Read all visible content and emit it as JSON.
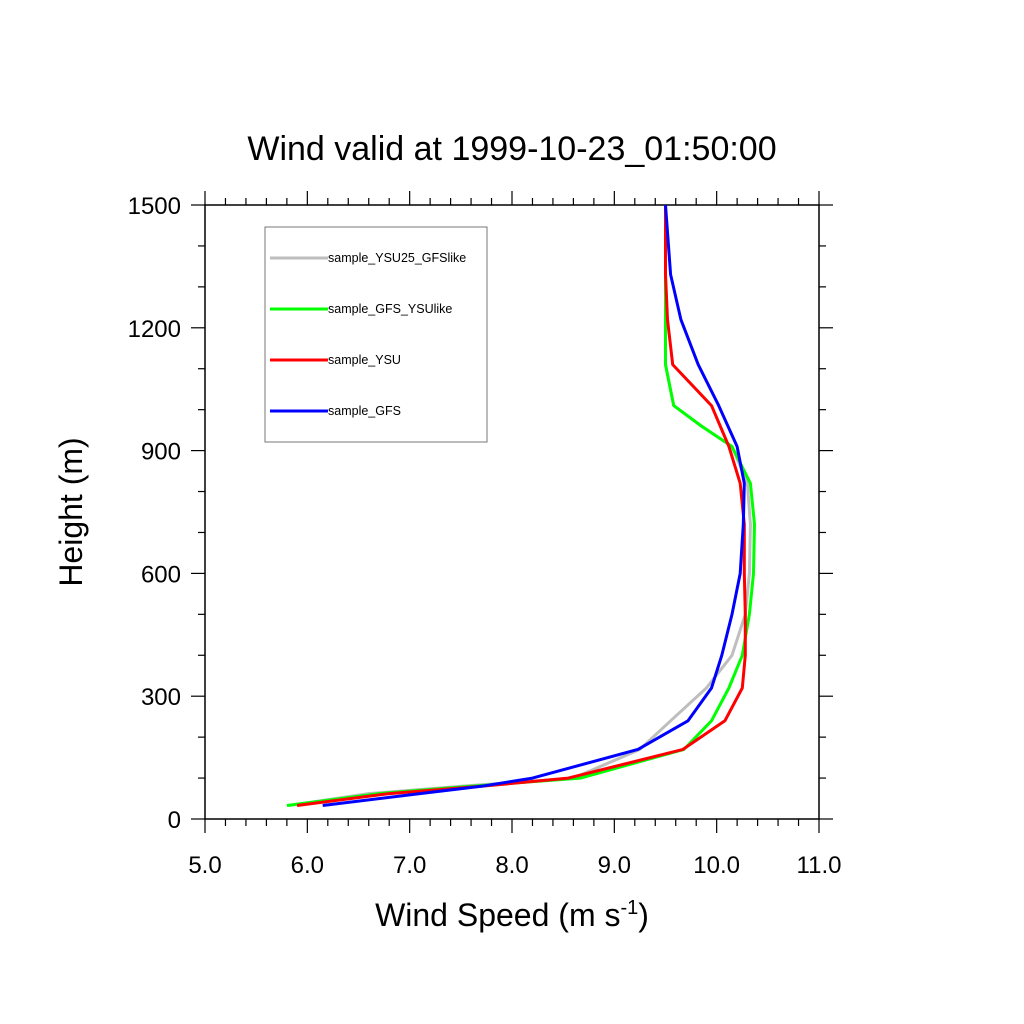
{
  "chart_data": {
    "type": "line",
    "title": "Wind valid at 1999-10-23_01:50:00",
    "xlabel": "Wind Speed (m s",
    "xlabel_superscript": "-1",
    "xlabel_suffix": ")",
    "ylabel": "Height (m)",
    "xlim": [
      5.0,
      11.0
    ],
    "ylim": [
      0,
      1500
    ],
    "xticks": [
      5.0,
      6.0,
      7.0,
      8.0,
      9.0,
      10.0,
      11.0
    ],
    "xtick_labels": [
      "5.0",
      "6.0",
      "7.0",
      "8.0",
      "9.0",
      "10.0",
      "11.0"
    ],
    "yticks": [
      0,
      300,
      600,
      900,
      1200,
      1500
    ],
    "ytick_labels": [
      "0",
      "300",
      "600",
      "900",
      "1200",
      "1500"
    ],
    "grid": false,
    "legend_position": "top-left",
    "series": [
      {
        "name": "sample_YSU25_GFSlike",
        "color": "#bebebe",
        "points": [
          [
            5.82,
            33
          ],
          [
            6.6,
            62
          ],
          [
            7.5,
            80
          ],
          [
            8.6,
            100
          ],
          [
            9.25,
            170
          ],
          [
            9.55,
            240
          ],
          [
            9.9,
            320
          ],
          [
            10.15,
            400
          ],
          [
            10.28,
            500
          ],
          [
            10.32,
            600
          ],
          [
            10.33,
            720
          ],
          [
            10.3,
            820
          ],
          [
            10.15,
            910
          ],
          [
            9.85,
            960
          ],
          [
            9.58,
            1010
          ],
          [
            9.5,
            1110
          ],
          [
            9.5,
            1220
          ],
          [
            9.5,
            1330
          ],
          [
            9.5,
            1500
          ]
        ]
      },
      {
        "name": "sample_GFS_YSUlike",
        "color": "#00ff00",
        "points": [
          [
            5.8,
            33
          ],
          [
            6.7,
            62
          ],
          [
            7.6,
            80
          ],
          [
            8.67,
            100
          ],
          [
            9.68,
            170
          ],
          [
            9.95,
            240
          ],
          [
            10.12,
            320
          ],
          [
            10.25,
            400
          ],
          [
            10.32,
            500
          ],
          [
            10.36,
            600
          ],
          [
            10.37,
            720
          ],
          [
            10.33,
            820
          ],
          [
            10.15,
            910
          ],
          [
            9.85,
            960
          ],
          [
            9.58,
            1010
          ],
          [
            9.5,
            1110
          ],
          [
            9.5,
            1220
          ],
          [
            9.5,
            1330
          ],
          [
            9.5,
            1500
          ]
        ]
      },
      {
        "name": "sample_YSU",
        "color": "#ff0000",
        "points": [
          [
            5.9,
            33
          ],
          [
            6.8,
            62
          ],
          [
            7.7,
            80
          ],
          [
            8.55,
            100
          ],
          [
            9.67,
            170
          ],
          [
            10.08,
            240
          ],
          [
            10.25,
            320
          ],
          [
            10.28,
            400
          ],
          [
            10.28,
            500
          ],
          [
            10.27,
            600
          ],
          [
            10.27,
            720
          ],
          [
            10.23,
            820
          ],
          [
            10.12,
            910
          ],
          [
            9.95,
            1010
          ],
          [
            9.57,
            1110
          ],
          [
            9.52,
            1220
          ],
          [
            9.5,
            1330
          ],
          [
            9.5,
            1500
          ]
        ]
      },
      {
        "name": "sample_GFS",
        "color": "#0000ff",
        "points": [
          [
            6.15,
            33
          ],
          [
            7.1,
            62
          ],
          [
            7.7,
            80
          ],
          [
            8.2,
            100
          ],
          [
            9.23,
            170
          ],
          [
            9.72,
            240
          ],
          [
            9.95,
            320
          ],
          [
            10.05,
            400
          ],
          [
            10.15,
            500
          ],
          [
            10.23,
            600
          ],
          [
            10.26,
            720
          ],
          [
            10.27,
            820
          ],
          [
            10.2,
            910
          ],
          [
            10.02,
            1010
          ],
          [
            9.82,
            1110
          ],
          [
            9.65,
            1220
          ],
          [
            9.55,
            1330
          ],
          [
            9.5,
            1500
          ]
        ]
      }
    ]
  }
}
